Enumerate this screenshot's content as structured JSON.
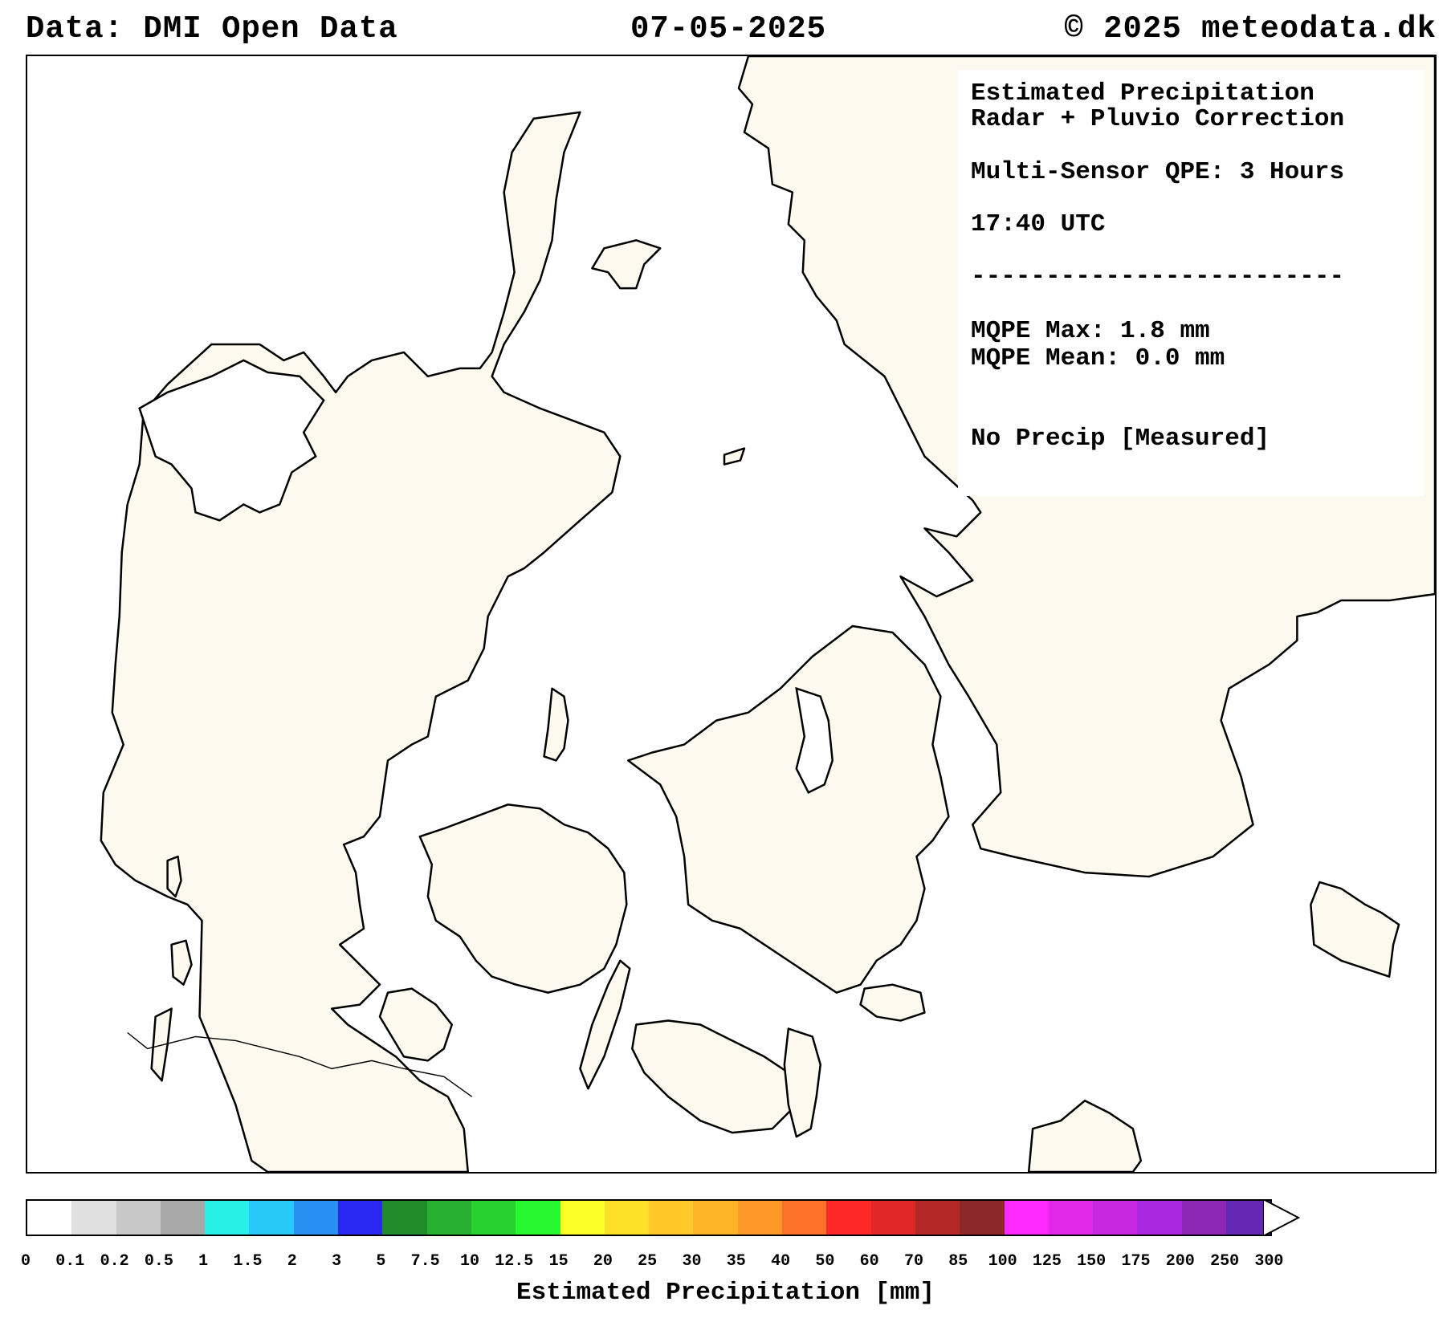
{
  "header": {
    "left": "Data: DMI Open Data",
    "center": "07-05-2025",
    "right": "© 2025 meteodata.dk"
  },
  "info_box": {
    "line1": "Estimated Precipitation",
    "line2": "Radar + Pluvio Correction",
    "line3": "Multi-Sensor QPE: 3 Hours",
    "line4": "17:40 UTC",
    "line5": "-------------------------",
    "line6": "MQPE Max: 1.8 mm",
    "line7": "MQPE Mean:  0.0 mm",
    "line8": "No Precip [Measured]"
  },
  "colorbar": {
    "title": "Estimated Precipitation [mm]",
    "ticks": [
      "0",
      "0.1",
      "0.2",
      "0.5",
      "1",
      "1.5",
      "2",
      "3",
      "5",
      "7.5",
      "10",
      "12.5",
      "15",
      "20",
      "25",
      "30",
      "35",
      "40",
      "50",
      "60",
      "70",
      "85",
      "100",
      "125",
      "150",
      "175",
      "200",
      "250",
      "300"
    ],
    "colors": [
      "#ffffff",
      "#e0e0e0",
      "#c8c8c8",
      "#a8a8a8",
      "#28f0e8",
      "#28c8f8",
      "#2890f0",
      "#2828f0",
      "#228b2a",
      "#28b030",
      "#28d030",
      "#28f830",
      "#ffff28",
      "#ffe028",
      "#ffc828",
      "#ffb428",
      "#ff9828",
      "#ff7028",
      "#ff2828",
      "#e02828",
      "#b42828",
      "#8c2828",
      "#ff28ff",
      "#e028e8",
      "#c828e0",
      "#a828e0",
      "#8c28b4",
      "#6428b4"
    ],
    "extend_arrow_color": "#ffffff"
  },
  "map": {
    "land_color": "#fdf9ee",
    "coast_color": "#000000"
  }
}
